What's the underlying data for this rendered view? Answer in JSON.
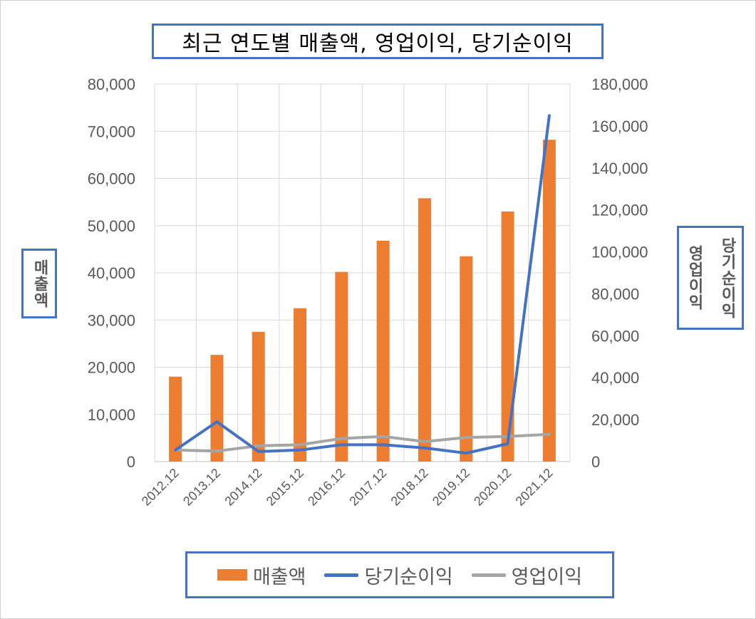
{
  "chart_data": {
    "type": "bar",
    "title": "최근 연도별 매출액, 영업이익, 당기순이익",
    "categories": [
      "2012.12",
      "2013.12",
      "2014.12",
      "2015.12",
      "2016.12",
      "2017.12",
      "2018.12",
      "2019.12",
      "2020.12",
      "2021.12"
    ],
    "ylabel_left": "매출액",
    "ylabel_right": [
      "당기순이익",
      "영업이익"
    ],
    "ylim_left": [
      0,
      80000
    ],
    "yticks_left": [
      "0",
      "10,000",
      "20,000",
      "30,000",
      "40,000",
      "50,000",
      "60,000",
      "70,000",
      "80,000"
    ],
    "ylim_right": [
      0,
      180000
    ],
    "yticks_right": [
      "0",
      "20,000",
      "40,000",
      "60,000",
      "80,000",
      "100,000",
      "120,000",
      "140,000",
      "160,000",
      "180,000"
    ],
    "grid": true,
    "legend_position": "bottom",
    "series": [
      {
        "name": "매출액",
        "type": "bar",
        "axis": "left",
        "color": "#ed7d31",
        "values": [
          18000,
          22600,
          27500,
          32500,
          40200,
          46800,
          55800,
          43500,
          53000,
          68200
        ]
      },
      {
        "name": "당기순이익",
        "type": "line",
        "axis": "right",
        "color": "#4472c4",
        "values": [
          5500,
          19000,
          4800,
          5500,
          8000,
          8000,
          6500,
          4000,
          8500,
          165000
        ]
      },
      {
        "name": "영업이익",
        "type": "line",
        "axis": "right",
        "color": "#a5a5a5",
        "values": [
          5500,
          5000,
          7500,
          8000,
          11000,
          12000,
          9500,
          11500,
          12000,
          13000
        ]
      }
    ]
  }
}
